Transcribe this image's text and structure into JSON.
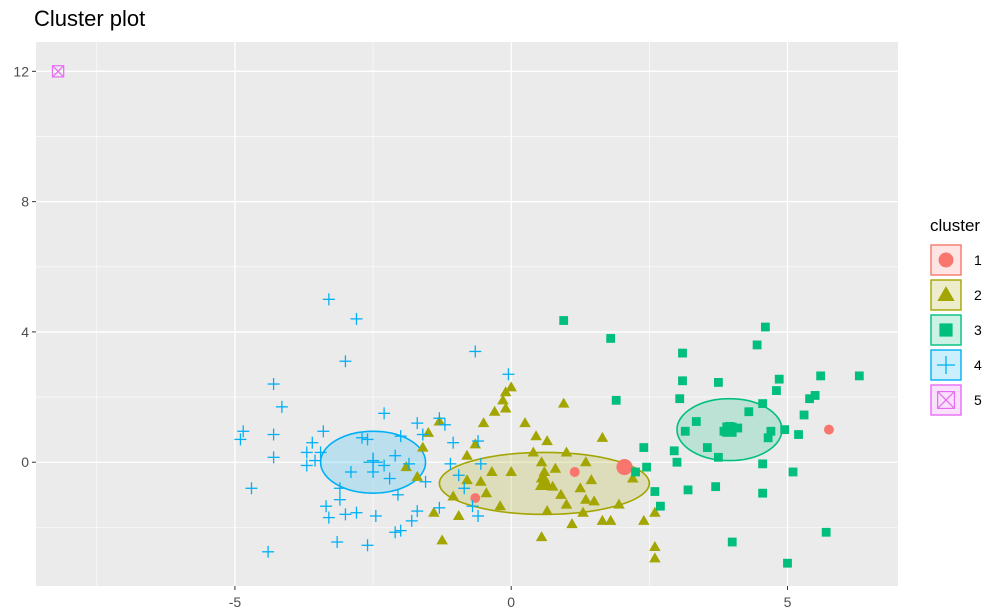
{
  "chart_data": {
    "type": "scatter",
    "title": "Cluster plot",
    "xlabel": "",
    "ylabel": "",
    "xlim": [
      -8.6,
      7.0
    ],
    "ylim": [
      -3.8,
      12.9
    ],
    "xticks": [
      -5,
      0,
      5
    ],
    "yticks": [
      0,
      4,
      8,
      12
    ],
    "grid": true,
    "legend_title": "cluster",
    "legend_placement": "right",
    "series": [
      {
        "name": "1",
        "color": "#F8766D",
        "shape": "circle",
        "points": [
          [
            -0.65,
            -1.1
          ],
          [
            1.15,
            -0.3
          ],
          [
            5.75,
            1.0
          ]
        ],
        "center": [
          2.05,
          -0.15
        ],
        "ellipse": {
          "cx": 2.05,
          "cy": -0.15,
          "rx": 0.1,
          "ry": 0.1
        }
      },
      {
        "name": "2",
        "color": "#A3A500",
        "shape": "triangle",
        "points": [
          [
            -1.6,
            0.45
          ],
          [
            -1.9,
            -0.15
          ],
          [
            -1.5,
            0.9
          ],
          [
            -1.3,
            1.25
          ],
          [
            -1.7,
            -0.45
          ],
          [
            -1.4,
            -1.55
          ],
          [
            -1.05,
            -1.05
          ],
          [
            -0.8,
            -0.55
          ],
          [
            -0.8,
            0.2
          ],
          [
            -0.65,
            0.55
          ],
          [
            -0.5,
            1.2
          ],
          [
            -0.3,
            1.55
          ],
          [
            -0.1,
            1.65
          ],
          [
            -0.15,
            1.9
          ],
          [
            -0.1,
            2.15
          ],
          [
            0.0,
            2.3
          ],
          [
            -0.55,
            -0.6
          ],
          [
            -0.2,
            -1.35
          ],
          [
            0.0,
            -0.3
          ],
          [
            0.25,
            1.2
          ],
          [
            0.4,
            0.3
          ],
          [
            0.45,
            0.8
          ],
          [
            0.55,
            0.0
          ],
          [
            0.6,
            -0.3
          ],
          [
            0.65,
            0.65
          ],
          [
            0.75,
            -0.75
          ],
          [
            0.8,
            -0.2
          ],
          [
            0.55,
            -0.5
          ],
          [
            0.9,
            -1.0
          ],
          [
            1.0,
            0.3
          ],
          [
            1.25,
            -0.8
          ],
          [
            1.35,
            0.0
          ],
          [
            1.5,
            -1.2
          ],
          [
            1.0,
            -1.3
          ],
          [
            0.65,
            -1.5
          ],
          [
            0.95,
            1.8
          ],
          [
            1.1,
            -1.9
          ],
          [
            1.3,
            -1.55
          ],
          [
            1.45,
            -0.55
          ],
          [
            1.65,
            -1.8
          ],
          [
            1.8,
            -1.8
          ],
          [
            1.95,
            -1.3
          ],
          [
            2.2,
            -0.5
          ],
          [
            1.65,
            0.75
          ],
          [
            2.4,
            -1.8
          ],
          [
            2.6,
            -1.55
          ],
          [
            2.6,
            -2.6
          ],
          [
            2.6,
            -2.95
          ],
          [
            0.55,
            -2.3
          ],
          [
            -1.25,
            -2.4
          ],
          [
            -0.95,
            -1.65
          ],
          [
            -0.35,
            -0.3
          ],
          [
            -0.45,
            -0.95
          ],
          [
            1.35,
            -1.15
          ],
          [
            0.6,
            -0.5
          ]
        ],
        "center": [
          0.6,
          -0.65
        ],
        "ellipse": {
          "cx": 0.6,
          "cy": -0.65,
          "rx": 1.9,
          "ry": 0.95
        }
      },
      {
        "name": "3",
        "color": "#00BF7D",
        "shape": "square",
        "points": [
          [
            0.95,
            4.35
          ],
          [
            1.8,
            3.8
          ],
          [
            1.9,
            1.9
          ],
          [
            2.4,
            0.45
          ],
          [
            2.45,
            -0.15
          ],
          [
            2.6,
            -0.9
          ],
          [
            2.7,
            -1.35
          ],
          [
            2.95,
            0.35
          ],
          [
            3.05,
            1.95
          ],
          [
            3.1,
            2.5
          ],
          [
            3.1,
            3.35
          ],
          [
            3.2,
            -0.85
          ],
          [
            3.35,
            1.25
          ],
          [
            3.55,
            0.45
          ],
          [
            3.7,
            -0.75
          ],
          [
            3.75,
            2.45
          ],
          [
            3.75,
            0.15
          ],
          [
            3.85,
            0.95
          ],
          [
            3.95,
            1.1
          ],
          [
            4.0,
            -2.45
          ],
          [
            4.1,
            1.05
          ],
          [
            4.3,
            1.55
          ],
          [
            4.45,
            3.6
          ],
          [
            4.55,
            1.8
          ],
          [
            4.55,
            -0.05
          ],
          [
            4.55,
            -0.95
          ],
          [
            4.6,
            4.15
          ],
          [
            4.65,
            0.75
          ],
          [
            4.7,
            0.95
          ],
          [
            4.8,
            2.2
          ],
          [
            4.85,
            2.55
          ],
          [
            4.95,
            1.0
          ],
          [
            5.0,
            -3.1
          ],
          [
            5.1,
            -0.3
          ],
          [
            5.2,
            0.85
          ],
          [
            5.3,
            1.45
          ],
          [
            5.4,
            1.95
          ],
          [
            5.5,
            2.05
          ],
          [
            5.6,
            2.65
          ],
          [
            5.7,
            -2.15
          ],
          [
            6.3,
            2.65
          ],
          [
            3.95,
            0.95
          ],
          [
            3.15,
            0.95
          ],
          [
            2.25,
            -0.3
          ],
          [
            3.0,
            0.0
          ]
        ],
        "center": [
          3.95,
          1.0
        ],
        "ellipse": {
          "cx": 3.95,
          "cy": 1.0,
          "rx": 0.95,
          "ry": 0.95
        }
      },
      {
        "name": "4",
        "color": "#00B0F6",
        "shape": "plus",
        "points": [
          [
            -3.3,
            5.0
          ],
          [
            -2.8,
            4.4
          ],
          [
            -3.0,
            3.1
          ],
          [
            -4.3,
            2.4
          ],
          [
            -4.15,
            1.7
          ],
          [
            -4.85,
            0.95
          ],
          [
            -4.9,
            0.7
          ],
          [
            -4.3,
            0.85
          ],
          [
            -4.3,
            0.15
          ],
          [
            -4.7,
            -0.8
          ],
          [
            -3.7,
            0.3
          ],
          [
            -3.6,
            0.6
          ],
          [
            -3.4,
            0.95
          ],
          [
            -3.45,
            0.3
          ],
          [
            -3.7,
            -0.1
          ],
          [
            -3.35,
            -1.35
          ],
          [
            -3.1,
            -1.15
          ],
          [
            -3.0,
            -1.6
          ],
          [
            -3.15,
            -2.45
          ],
          [
            -2.6,
            -2.55
          ],
          [
            -2.7,
            0.75
          ],
          [
            -2.3,
            1.5
          ],
          [
            -2.5,
            -0.3
          ],
          [
            -2.1,
            0.2
          ],
          [
            -2.8,
            -1.55
          ],
          [
            -2.45,
            -1.65
          ],
          [
            -2.05,
            -1.0
          ],
          [
            -2.0,
            -2.1
          ],
          [
            -1.8,
            -1.8
          ],
          [
            -1.7,
            1.2
          ],
          [
            -1.6,
            0.85
          ],
          [
            -1.55,
            -0.6
          ],
          [
            -1.7,
            -1.5
          ],
          [
            -1.3,
            -1.4
          ],
          [
            -1.3,
            1.35
          ],
          [
            -1.2,
            1.15
          ],
          [
            -1.05,
            0.6
          ],
          [
            -1.1,
            -0.05
          ],
          [
            -0.95,
            -0.4
          ],
          [
            -0.85,
            -0.8
          ],
          [
            -0.7,
            -1.35
          ],
          [
            -0.6,
            -1.65
          ],
          [
            -0.6,
            0.65
          ],
          [
            -0.55,
            -0.05
          ],
          [
            -0.65,
            3.4
          ],
          [
            -0.05,
            2.7
          ],
          [
            -4.4,
            -2.75
          ],
          [
            -2.1,
            -2.15
          ],
          [
            -2.3,
            -0.1
          ],
          [
            -2.6,
            0.7
          ],
          [
            -2.9,
            -0.3
          ],
          [
            -3.1,
            -0.8
          ],
          [
            -3.3,
            -1.7
          ],
          [
            -2.0,
            0.8
          ],
          [
            -2.2,
            -0.5
          ],
          [
            -1.85,
            -0.05
          ],
          [
            -2.5,
            0.05
          ],
          [
            -3.55,
            0.05
          ]
        ],
        "center": [
          -2.5,
          0.0
        ],
        "ellipse": {
          "cx": -2.5,
          "cy": 0.0,
          "rx": 0.95,
          "ry": 0.95
        }
      },
      {
        "name": "5",
        "color": "#E76BF3",
        "shape": "square-cross",
        "points": [
          [
            -8.2,
            12.0
          ]
        ],
        "center": [
          -8.2,
          12.0
        ],
        "ellipse": null
      }
    ]
  }
}
